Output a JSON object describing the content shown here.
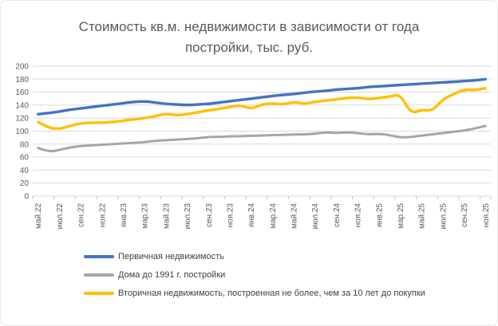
{
  "chart_data": {
    "type": "line",
    "title": "Стоимость кв.м. недвижимости в зависимости от года постройки, тыс. руб.",
    "title_color": "#595959",
    "grid": true,
    "grid_color": "#d9d9d9",
    "tick_color": "#bfbfbf",
    "ylim": [
      0,
      200
    ],
    "ytick_step": 20,
    "legend_position": "bottom-left",
    "x_tick_labels": [
      "май.22",
      "июл.22",
      "сен.22",
      "ноя.22",
      "янв.23",
      "мар.23",
      "май.23",
      "июл.23",
      "сен.23",
      "ноя.23",
      "янв.24",
      "мар.24",
      "май.24",
      "июл.24",
      "сен.24",
      "ноя.24",
      "янв.25",
      "мар.25",
      "май.25",
      "июл.25",
      "сен.25",
      "ноя.25"
    ],
    "categories": [
      "май.22",
      "июн.22",
      "июл.22",
      "авг.22",
      "сен.22",
      "окт.22",
      "ноя.22",
      "дек.22",
      "янв.23",
      "фев.23",
      "мар.23",
      "апр.23",
      "май.23",
      "июн.23",
      "июл.23",
      "авг.23",
      "сен.23",
      "окт.23",
      "ноя.23",
      "дек.23",
      "янв.24",
      "фев.24",
      "мар.24",
      "апр.24",
      "май.24",
      "июн.24",
      "июл.24",
      "авг.24",
      "сен.24",
      "окт.24",
      "ноя.24",
      "дек.24",
      "янв.25",
      "фев.25",
      "мар.25",
      "апр.25",
      "май.25",
      "июн.25",
      "июл.25",
      "авг.25",
      "сен.25",
      "окт.25",
      "ноя.25"
    ],
    "series": [
      {
        "name": "Первичная недвижимость",
        "color": "#4472c4",
        "width": 3.4,
        "values": [
          126,
          128,
          130,
          133,
          135,
          137,
          139,
          141,
          143,
          145,
          146,
          144,
          142,
          141,
          140,
          141,
          142,
          144,
          146,
          148,
          150,
          152,
          154,
          156,
          157,
          159,
          161,
          162,
          164,
          165,
          166,
          168,
          169,
          170,
          171,
          172,
          173,
          174,
          175,
          176,
          177,
          178,
          180
        ]
      },
      {
        "name": "Дома до 1991 г. постройки",
        "color": "#a6a6a6",
        "width": 3.0,
        "values": [
          74,
          68,
          71,
          75,
          77,
          78,
          79,
          80,
          81,
          82,
          83,
          85,
          86,
          87,
          88,
          89,
          91,
          91,
          92,
          92,
          93,
          93,
          94,
          94,
          95,
          95,
          96,
          98,
          97,
          98,
          97,
          95,
          96,
          94,
          90,
          91,
          93,
          95,
          97,
          99,
          101,
          104,
          108
        ]
      },
      {
        "name": "Вторичная недвижимость, построенная не более, чем за 10 лет до покупки",
        "color": "#ffc000",
        "width": 3.4,
        "values": [
          114,
          105,
          103,
          108,
          112,
          113,
          113,
          114,
          116,
          118,
          120,
          123,
          127,
          124,
          126,
          129,
          132,
          134,
          137,
          140,
          134,
          141,
          143,
          141,
          145,
          142,
          145,
          147,
          149,
          151,
          152,
          149,
          151,
          153,
          157,
          127,
          133,
          131,
          149,
          157,
          164,
          163,
          166
        ]
      }
    ]
  }
}
